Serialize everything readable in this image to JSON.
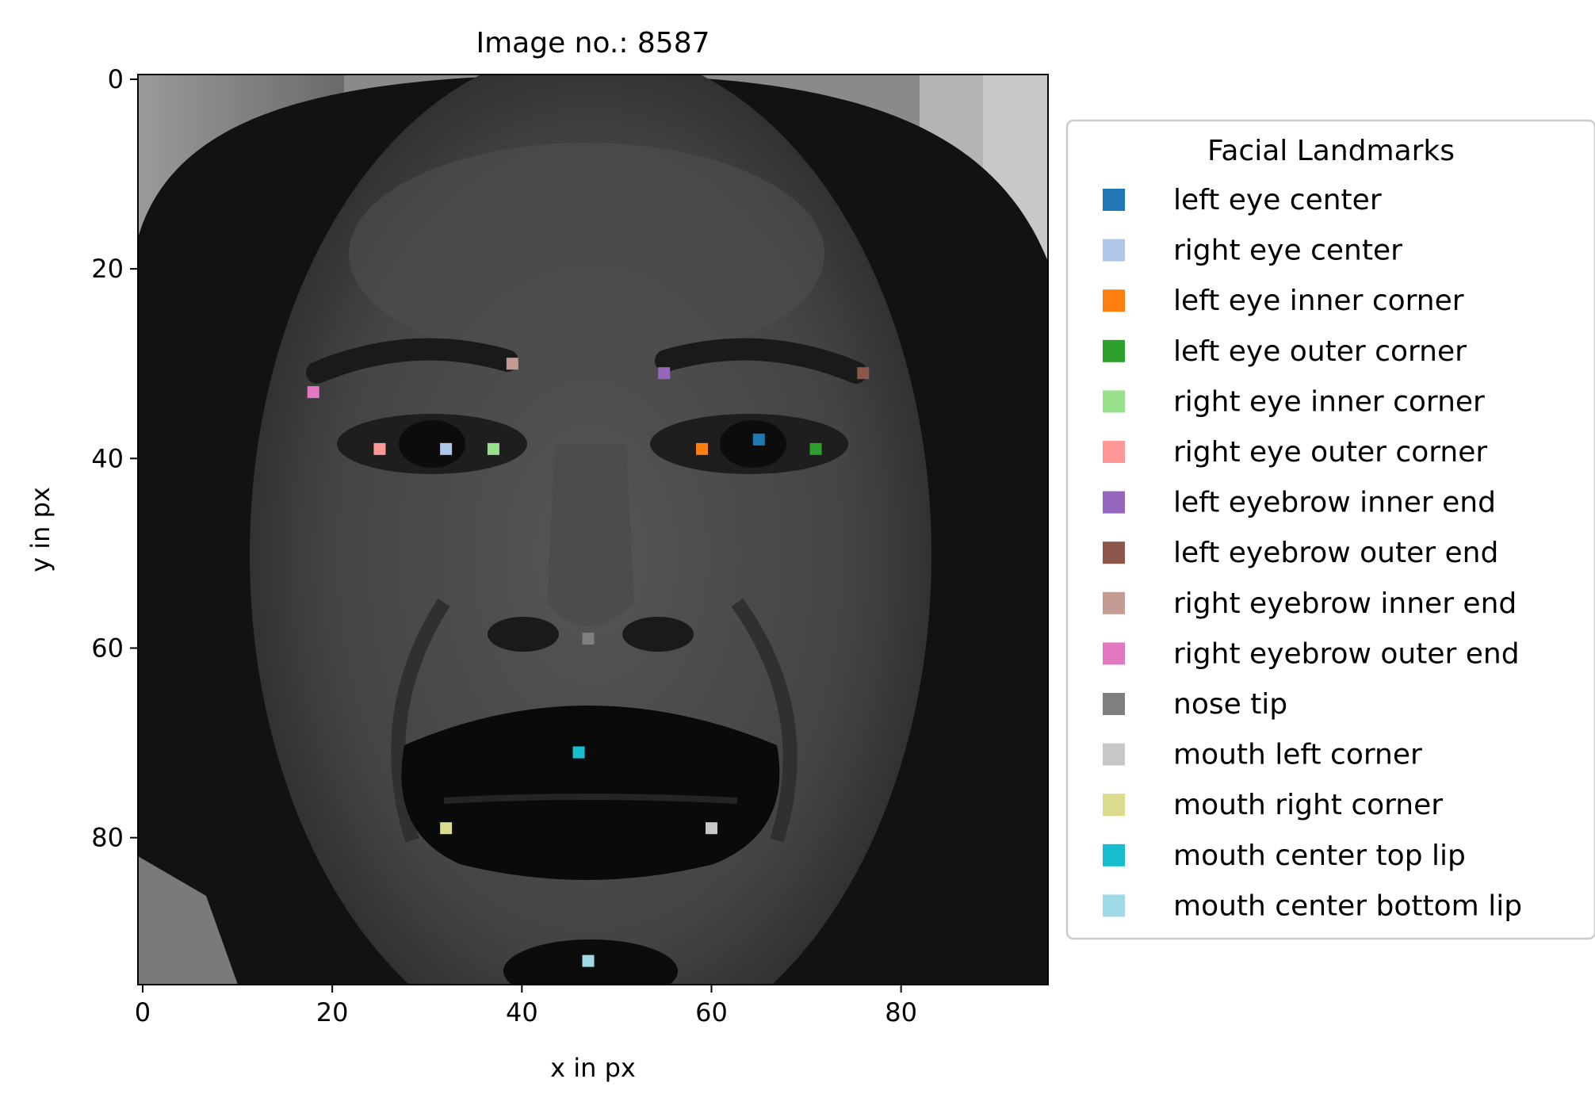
{
  "chart_data": {
    "type": "scatter",
    "title": "Image no.: 8587",
    "xlabel": "x in px",
    "ylabel": "y in px",
    "xlim": [
      -0.5,
      95.5
    ],
    "ylim": [
      95.5,
      -0.5
    ],
    "y_inverted": true,
    "x_ticks": [
      0,
      20,
      40,
      60,
      80
    ],
    "y_ticks": [
      0,
      20,
      40,
      60,
      80
    ],
    "background": "grayscale photograph of a face",
    "legend": {
      "title": "Facial Landmarks",
      "position": "outside-right"
    },
    "series": [
      {
        "name": "left eye center",
        "color": "#1f77b4",
        "x": 65,
        "y": 38
      },
      {
        "name": "right eye center",
        "color": "#aec7e8",
        "x": 32,
        "y": 39
      },
      {
        "name": "left eye inner corner",
        "color": "#ff7f0e",
        "x": 59,
        "y": 39
      },
      {
        "name": "left eye outer corner",
        "color": "#2ca02c",
        "x": 71,
        "y": 39
      },
      {
        "name": "right eye inner corner",
        "color": "#98df8a",
        "x": 37,
        "y": 39
      },
      {
        "name": "right eye outer corner",
        "color": "#ff9896",
        "x": 25,
        "y": 39
      },
      {
        "name": "left eyebrow inner end",
        "color": "#9467bd",
        "x": 55,
        "y": 31
      },
      {
        "name": "left eyebrow outer end",
        "color": "#8c564b",
        "x": 76,
        "y": 31
      },
      {
        "name": "right eyebrow inner end",
        "color": "#c49c94",
        "x": 39,
        "y": 30
      },
      {
        "name": "right eyebrow outer end",
        "color": "#e377c2",
        "x": 18,
        "y": 33
      },
      {
        "name": "nose tip",
        "color": "#7f7f7f",
        "x": 47,
        "y": 59
      },
      {
        "name": "mouth left corner",
        "color": "#c7c7c7",
        "x": 60,
        "y": 79
      },
      {
        "name": "mouth right corner",
        "color": "#dbdb8d",
        "x": 32,
        "y": 79
      },
      {
        "name": "mouth center top lip",
        "color": "#17becf",
        "x": 46,
        "y": 71
      },
      {
        "name": "mouth center bottom lip",
        "color": "#9edae5",
        "x": 47,
        "y": 93
      }
    ]
  }
}
